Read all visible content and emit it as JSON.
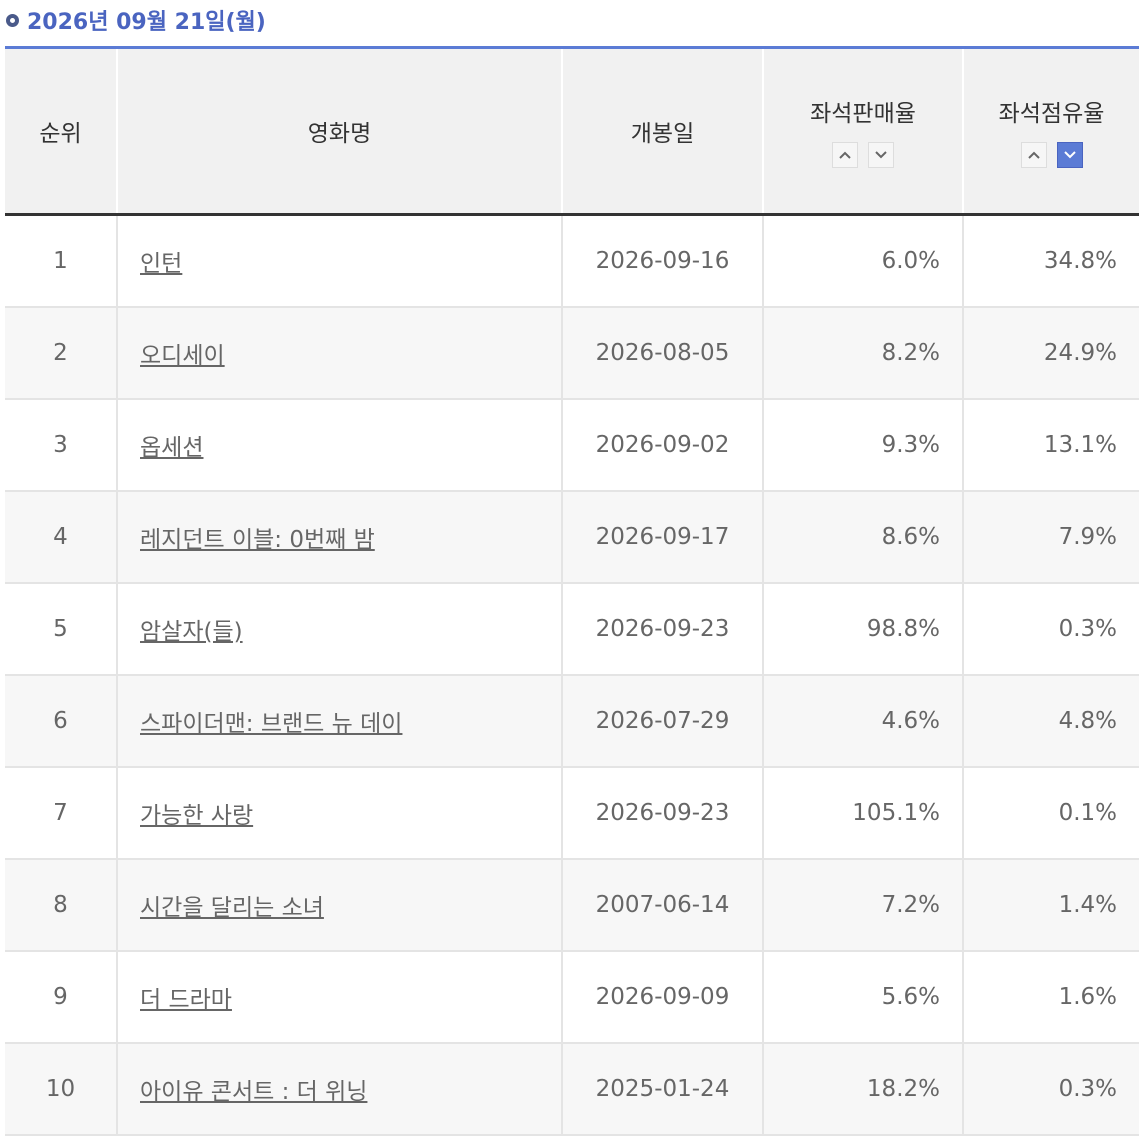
{
  "header": {
    "title": "2026년 09월 21일(월)"
  },
  "table": {
    "columns": [
      "순위",
      "영화명",
      "개봉일",
      "좌석판매율",
      "좌석점유율"
    ],
    "rows": [
      [
        "1",
        "인턴",
        "2026-09-16",
        "6.0%",
        "34.8%"
      ],
      [
        "2",
        "오디세이",
        "2026-08-05",
        "8.2%",
        "24.9%"
      ],
      [
        "3",
        "옵세션",
        "2026-09-02",
        "9.3%",
        "13.1%"
      ],
      [
        "4",
        "레지던트 이블: 0번째 밤",
        "2026-09-17",
        "8.6%",
        "7.9%"
      ],
      [
        "5",
        "암살자(들)",
        "2026-09-23",
        "98.8%",
        "0.3%"
      ],
      [
        "6",
        "스파이더맨: 브랜드 뉴 데이",
        "2026-07-29",
        "4.6%",
        "4.8%"
      ],
      [
        "7",
        "가능한 사랑",
        "2026-09-23",
        "105.1%",
        "0.1%"
      ],
      [
        "8",
        "시간을 달리는 소녀",
        "2007-06-14",
        "7.2%",
        "1.4%"
      ],
      [
        "9",
        "더 드라마",
        "2026-09-09",
        "5.6%",
        "1.6%"
      ],
      [
        "10",
        "아이유 콘서트 : 더 위닝",
        "2025-01-24",
        "18.2%",
        "0.3%"
      ]
    ]
  }
}
